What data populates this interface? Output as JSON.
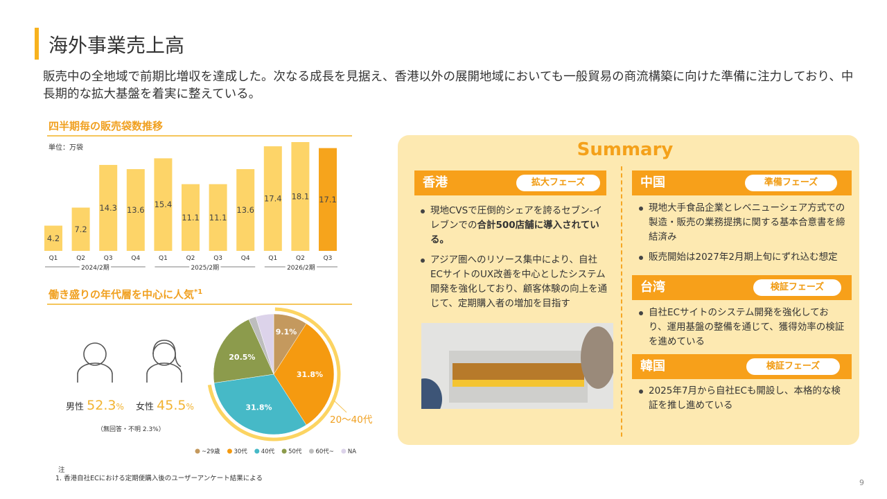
{
  "header": {
    "title": "海外事業売上高",
    "lead": "販売中の全地域で前期比増収を達成した。次なる成長を見据え、香港以外の展開地域においても一般貿易の商流構築に向けた準備に注力しており、中長期的な拡大基盤を着実に整えている。"
  },
  "chart_data": [
    {
      "type": "bar",
      "title": "四半期毎の販売袋数推移",
      "unit": "単位：万袋",
      "groups": [
        {
          "label": "2024/2期",
          "bars": [
            {
              "category": "Q1",
              "value": 4.2,
              "color": "#fdd468"
            },
            {
              "category": "Q2",
              "value": 7.2,
              "color": "#fdd468"
            },
            {
              "category": "Q3",
              "value": 14.3,
              "color": "#fdd468"
            },
            {
              "category": "Q4",
              "value": 13.6,
              "color": "#fdd468"
            }
          ]
        },
        {
          "label": "2025/2期",
          "bars": [
            {
              "category": "Q1",
              "value": 15.4,
              "color": "#fdd468"
            },
            {
              "category": "Q2",
              "value": 11.1,
              "color": "#fdd468"
            },
            {
              "category": "Q3",
              "value": 11.1,
              "color": "#fdd468"
            },
            {
              "category": "Q4",
              "value": 13.6,
              "color": "#fdd468"
            }
          ]
        },
        {
          "label": "2026/2期",
          "bars": [
            {
              "category": "Q1",
              "value": 17.4,
              "color": "#fdd468"
            },
            {
              "category": "Q2",
              "value": 18.1,
              "color": "#fdd468"
            },
            {
              "category": "Q3",
              "value": 17.1,
              "color": "#f6a41c"
            }
          ]
        }
      ]
    },
    {
      "type": "pie",
      "title": "働き盛りの年代層を中心に人気",
      "title_note": "*1",
      "annotation": "20〜40代",
      "series": [
        {
          "name": "~29歳",
          "value": 9.1,
          "value_label": "9.1%",
          "color": "#c4995e"
        },
        {
          "name": "30代",
          "value": 31.8,
          "value_label": "31.8%",
          "color": "#f59a10"
        },
        {
          "name": "40代",
          "value": 31.8,
          "value_label": "31.8%",
          "color": "#46b9c7"
        },
        {
          "name": "50代",
          "value": 20.5,
          "value_label": "20.5%",
          "color": "#8c9b4c"
        },
        {
          "name": "60代~",
          "value": 2.0,
          "color": "#bdbdbd"
        },
        {
          "name": "NA",
          "value": 4.8,
          "color": "#dcd3ea"
        }
      ]
    }
  ],
  "gender": {
    "male": {
      "label": "男性",
      "value": "52.3",
      "unit": "%"
    },
    "female": {
      "label": "女性",
      "value": "45.5",
      "unit": "%"
    },
    "note": "（無回答・不明 2.3%）"
  },
  "summary": {
    "title": "Summary",
    "regions": [
      {
        "name": "香港",
        "phase": "拡大フェーズ",
        "bullets": [
          {
            "text": "現地CVSで圧倒的シェアを誇るセブン-イレブンでの",
            "emphasis": "合計500店舗に導入されている。"
          },
          {
            "text": "アジア圏へのリソース集中により、自社ECサイトのUX改善を中心としたシステム開発を強化しており、顧客体験の向上を通じて、定期購入者の増加を目指す"
          }
        ]
      },
      {
        "name": "中国",
        "phase": "準備フェーズ",
        "bullets": [
          {
            "text": "現地大手食品企業とレベニューシェア方式での製造・販売の業務提携に関する基本合意書を締結済み"
          },
          {
            "text": "販売開始は2027年2月期上旬にずれ込む想定"
          }
        ]
      },
      {
        "name": "台湾",
        "phase": "検証フェーズ",
        "bullets": [
          {
            "text": "自社ECサイトのシステム開発を強化しており、運用基盤の整備を通じて、獲得効率の検証を進めている"
          }
        ]
      },
      {
        "name": "韓国",
        "phase": "検証フェーズ",
        "bullets": [
          {
            "text": "2025年7月から自社ECも開設し、本格的な検証を推し進めている"
          }
        ]
      }
    ]
  },
  "note": {
    "mark": "注",
    "items": [
      "1. 香港自社ECにおける定期便購入後のユーザーアンケート結果による"
    ]
  },
  "page": "9"
}
